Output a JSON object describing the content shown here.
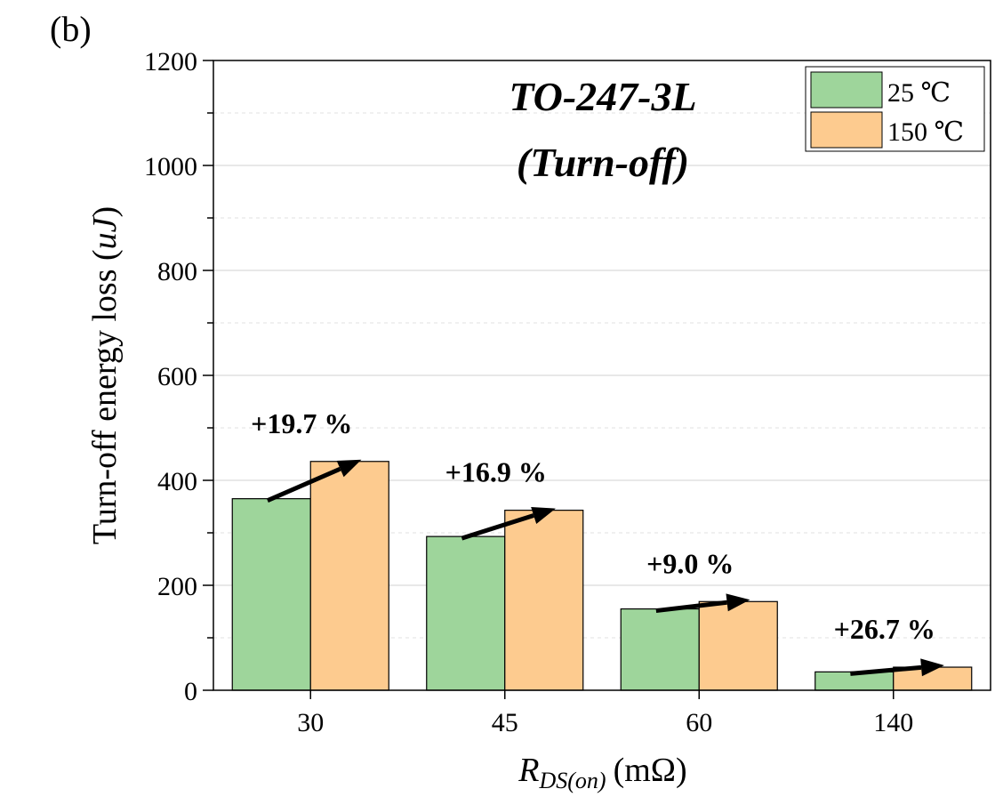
{
  "panel_label": "(b)",
  "chart_data": {
    "type": "bar",
    "title_line1": "TO-247-3L",
    "title_line2": "(Turn-off)",
    "categories": [
      "30",
      "45",
      "60",
      "140"
    ],
    "series": [
      {
        "name": "25 ℃",
        "color": "#9ed59b",
        "values": [
          365,
          293,
          155,
          35
        ]
      },
      {
        "name": "150 ℃",
        "color": "#fdcb8f",
        "values": [
          436,
          343,
          169,
          44
        ]
      }
    ],
    "annotations": [
      "+19.7 %",
      "+16.9 %",
      "+9.0 %",
      "+26.7 %"
    ],
    "ylabel": {
      "main": "Turn-off energy loss (",
      "unit": "uJ",
      "close": ")"
    },
    "xlabel": {
      "var": "R",
      "sub": "DS(on)",
      "unit": "(mΩ)"
    },
    "ylim": [
      0,
      1200
    ],
    "yticks": [
      0,
      200,
      400,
      600,
      800,
      1000,
      1200
    ],
    "grid": true,
    "legend_position": "top-right"
  }
}
